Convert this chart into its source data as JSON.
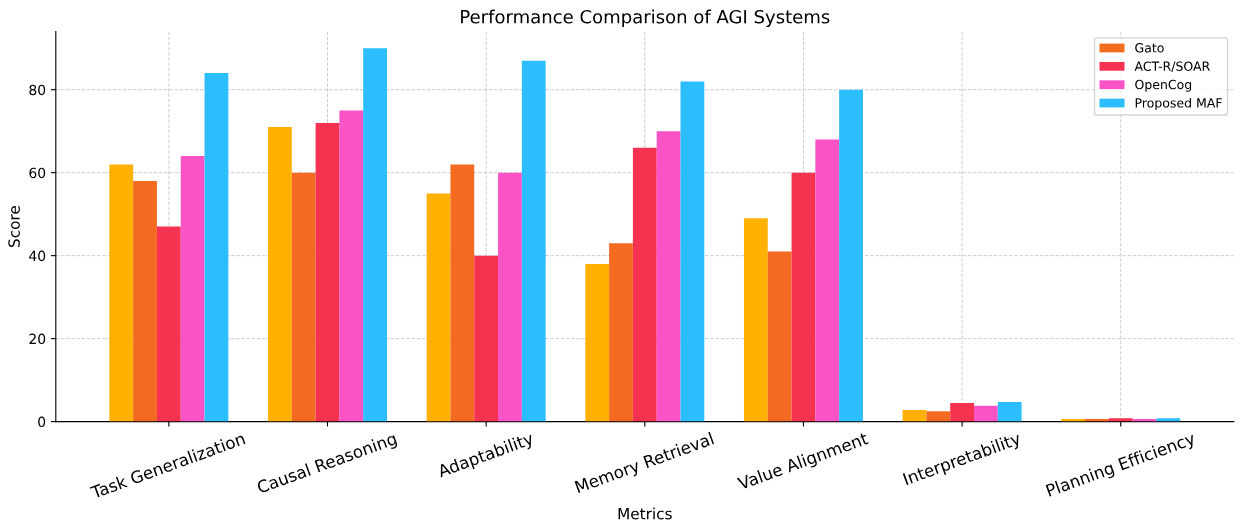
{
  "chart_data": {
    "type": "bar",
    "title": "Performance Comparison of AGI Systems",
    "xlabel": "Metrics",
    "ylabel": "Score",
    "categories": [
      "Task Generalization",
      "Causal Reasoning",
      "Adaptability",
      "Memory Retrieval",
      "Value Alignment",
      "Interpretability",
      "Planning Efficiency"
    ],
    "series": [
      {
        "color": "#ffb000",
        "values": [
          62,
          71,
          55,
          38,
          49,
          2.8,
          0.6
        ]
      },
      {
        "name": "Gato",
        "color": "#f26b21",
        "values": [
          58,
          60,
          62,
          43,
          41,
          2.5,
          0.6
        ]
      },
      {
        "name": "ACT-R/SOAR",
        "color": "#f5324f",
        "values": [
          47,
          72,
          40,
          66,
          60,
          4.5,
          0.8
        ]
      },
      {
        "name": "OpenCog",
        "color": "#f953c6",
        "values": [
          64,
          75,
          60,
          70,
          68,
          3.8,
          0.6
        ]
      },
      {
        "name": "Proposed MAF",
        "color": "#2bbdfc",
        "values": [
          84,
          90,
          87,
          82,
          80,
          4.7,
          0.8
        ]
      }
    ],
    "ylim": [
      0,
      94
    ],
    "yticks": [
      0,
      20,
      40,
      60,
      80
    ],
    "grid": true,
    "legend": "top right"
  }
}
